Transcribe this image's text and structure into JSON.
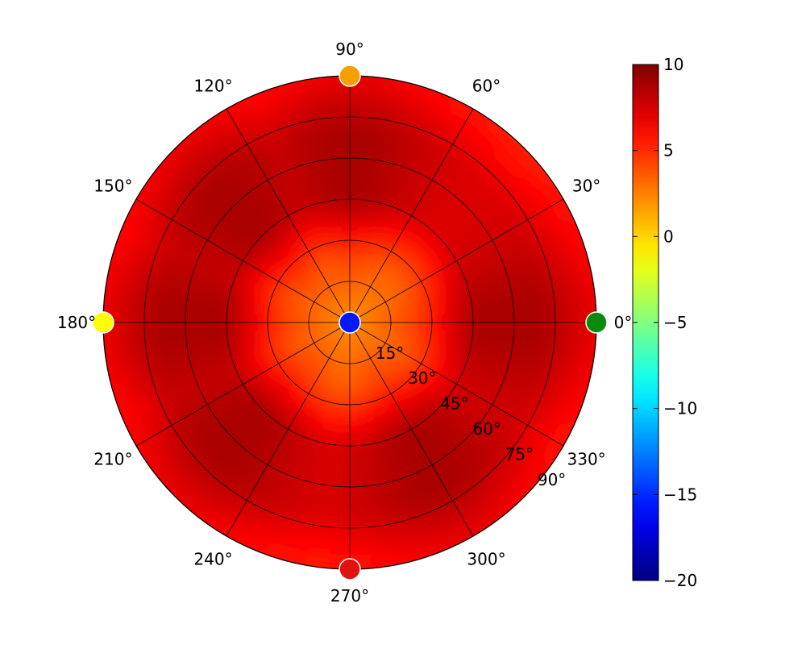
{
  "chart_data": {
    "type": "heatmap",
    "projection": "polar",
    "title": "",
    "angular_tick_labels": [
      "0°",
      "30°",
      "60°",
      "90°",
      "120°",
      "150°",
      "180°",
      "210°",
      "240°",
      "270°",
      "300°",
      "330°"
    ],
    "angular_ticks_deg": [
      0,
      30,
      60,
      90,
      120,
      150,
      180,
      210,
      240,
      270,
      300,
      330
    ],
    "radial_tick_labels": [
      "15°",
      "30°",
      "45°",
      "60°",
      "75°",
      "90°"
    ],
    "radial_ticks": [
      15,
      30,
      45,
      60,
      75,
      90
    ],
    "rlim": [
      0,
      90
    ],
    "grid": true,
    "colormap": "jet",
    "colorbar": {
      "position": "right",
      "range": [
        -20,
        10
      ],
      "tick_values": [
        10,
        5,
        0,
        -5,
        -10,
        -15,
        -20
      ],
      "tick_labels": [
        "10",
        "5",
        "0",
        "−5",
        "−10",
        "−15",
        "−20"
      ]
    },
    "markers": [
      {
        "azimuth_deg": 0,
        "elevation_deg": 90,
        "value": -3,
        "color": "#0a8a0a"
      },
      {
        "azimuth_deg": 90,
        "elevation_deg": 90,
        "value": 2,
        "color": "#f5a000"
      },
      {
        "azimuth_deg": 180,
        "elevation_deg": 90,
        "value": 0,
        "color": "#ffff00"
      },
      {
        "azimuth_deg": 270,
        "elevation_deg": 90,
        "value": 8,
        "color": "#e31010"
      },
      {
        "azimuth_deg": 0,
        "elevation_deg": 0,
        "value": -16,
        "color": "#0018ff"
      }
    ],
    "field_summary": {
      "center_value": 2,
      "inner_ring_value": 4,
      "ring_peak_value": 8,
      "outer_value": 6,
      "peak_azimuths_deg": [
        0,
        90,
        135,
        180,
        225,
        300
      ]
    }
  }
}
